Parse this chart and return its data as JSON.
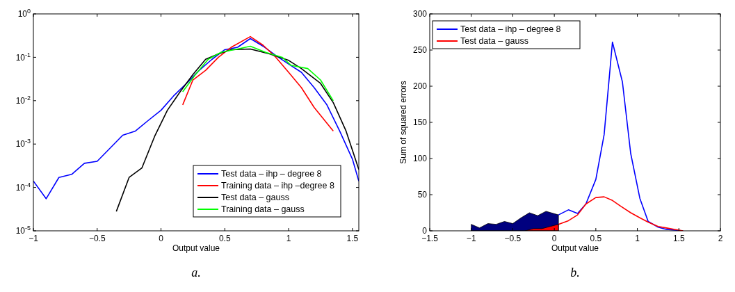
{
  "chart_data": [
    {
      "type": "line",
      "xlabel": "Output value",
      "log": "y",
      "xlim": [
        -1,
        1.55
      ],
      "xticks": [
        -1,
        -0.5,
        0,
        0.5,
        1,
        1.5
      ],
      "ylim": [
        1e-05,
        1
      ],
      "yticks": [
        {
          "value": 1e-05,
          "label": "10$^{-5}$"
        },
        {
          "value": 0.0001,
          "label": "10$^{-4}$"
        },
        {
          "value": 0.001,
          "label": "10$^{-3}$"
        },
        {
          "value": 0.01,
          "label": "10$^{-2}$"
        },
        {
          "value": 0.1,
          "label": "10$^{-1}$"
        },
        {
          "value": 1,
          "label": "10$^{0}$"
        }
      ],
      "legend": "bottom right",
      "annotations": [
        "a."
      ],
      "series": [
        {
          "name": "Test data – ihp – degree 8",
          "color": "#0000ff",
          "x": [
            -1,
            -0.9,
            -0.8,
            -0.7,
            -0.6,
            -0.5,
            -0.4,
            -0.3,
            -0.2,
            -0.1,
            0,
            0.1,
            0.2,
            0.3,
            0.4,
            0.5,
            0.6,
            0.7,
            0.8,
            0.9,
            1,
            1.1,
            1.2,
            1.3,
            1.4,
            1.5,
            1.55
          ],
          "values": [
            0.00014,
            5.5e-05,
            0.00017,
            0.0002,
            0.00036,
            0.0004,
            0.0008,
            0.0016,
            0.002,
            0.0035,
            0.006,
            0.013,
            0.025,
            0.05,
            0.09,
            0.15,
            0.17,
            0.27,
            0.18,
            0.11,
            0.07,
            0.045,
            0.02,
            0.008,
            0.002,
            0.00045,
            0.00014
          ]
        },
        {
          "name": "Training data – ihp –degree 8",
          "color": "#ff0000",
          "x": [
            0.17,
            0.25,
            0.35,
            0.45,
            0.55,
            0.7,
            0.8,
            0.9,
            1,
            1.1,
            1.2,
            1.35
          ],
          "values": [
            0.008,
            0.03,
            0.05,
            0.1,
            0.17,
            0.3,
            0.19,
            0.1,
            0.045,
            0.02,
            0.007,
            0.002
          ]
        },
        {
          "name": "Test data – gauss",
          "color": "#000000",
          "x": [
            -0.35,
            -0.25,
            -0.15,
            -0.05,
            0.05,
            0.15,
            0.25,
            0.35,
            0.45,
            0.55,
            0.7,
            0.85,
            1,
            1.1,
            1.25,
            1.35,
            1.45,
            1.55
          ],
          "values": [
            2.8e-05,
            0.00017,
            0.00028,
            0.0015,
            0.006,
            0.016,
            0.04,
            0.09,
            0.12,
            0.15,
            0.155,
            0.12,
            0.085,
            0.055,
            0.025,
            0.009,
            0.002,
            0.00026
          ]
        },
        {
          "name": "Training data – gauss",
          "color": "#00ff00",
          "x": [
            0.17,
            0.27,
            0.37,
            0.47,
            0.6,
            0.7,
            0.82,
            0.95,
            1.02,
            1.15,
            1.25,
            1.35
          ],
          "values": [
            0.016,
            0.04,
            0.09,
            0.13,
            0.155,
            0.18,
            0.13,
            0.1,
            0.065,
            0.055,
            0.03,
            0.01
          ]
        }
      ]
    },
    {
      "type": "line",
      "xlabel": "Output value",
      "ylabel": "Sum of squared errors",
      "xlim": [
        -1.5,
        2
      ],
      "xticks": [
        -1.5,
        -1,
        -0.5,
        0,
        0.5,
        1,
        1.5,
        2
      ],
      "ylim": [
        0,
        300
      ],
      "yticks": [
        0,
        50,
        100,
        150,
        200,
        250,
        300
      ],
      "legend": "top left",
      "annotations": [
        "b."
      ],
      "series": [
        {
          "name": "Test data – ihp – degree 8",
          "color": "#0000ff",
          "x": [
            0.05,
            0.17,
            0.28,
            0.38,
            0.5,
            0.6,
            0.7,
            0.82,
            0.92,
            1.03,
            1.13,
            1.25,
            1.35,
            1.45,
            1.55
          ],
          "values": [
            22,
            29,
            24,
            37,
            71,
            133,
            261,
            206,
            107,
            45,
            13,
            5,
            2,
            1,
            0
          ]
        },
        {
          "name": "Test data – gauss",
          "color": "#ff0000",
          "x": [
            0.05,
            0.17,
            0.28,
            0.38,
            0.5,
            0.6,
            0.7,
            0.8,
            0.92,
            1.03,
            1.13,
            1.25,
            1.35,
            1.45,
            1.55
          ],
          "values": [
            9,
            14,
            22,
            37,
            46,
            47,
            42,
            34,
            25,
            18,
            12,
            6,
            4,
            2,
            0
          ]
        },
        {
          "type": "area",
          "color": "#00007f",
          "x": [
            -1,
            -0.9,
            -0.8,
            -0.7,
            -0.6,
            -0.5,
            -0.4,
            -0.3,
            -0.2,
            -0.1,
            0.05
          ],
          "values": [
            9,
            4,
            10,
            9,
            13,
            10,
            18,
            25,
            21,
            27,
            22
          ]
        },
        {
          "type": "area",
          "color": "#ff0000",
          "x": [
            -0.35,
            -0.25,
            -0.15,
            -0.05,
            0.05
          ],
          "values": [
            0,
            3,
            3,
            6,
            9
          ]
        }
      ]
    }
  ]
}
